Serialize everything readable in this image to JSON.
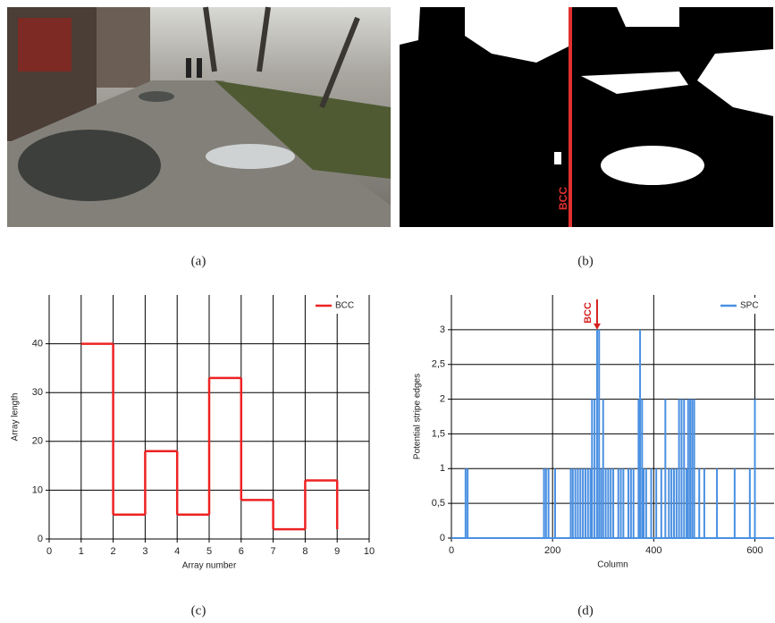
{
  "captions": [
    "(a)",
    "(b)",
    "(c)",
    "(d)"
  ],
  "mask_annotation": "BCC",
  "chart_data": [
    {
      "type": "line",
      "step": true,
      "xlabel": "Array number",
      "ylabel": "Array length",
      "x": [
        1,
        2,
        3,
        4,
        5,
        6,
        7,
        8,
        9
      ],
      "series": [
        {
          "name": "BCC",
          "color": "#ee2222",
          "values": [
            40,
            5,
            18,
            5,
            33,
            8,
            2,
            12,
            2
          ]
        }
      ],
      "xlim": [
        0,
        10
      ],
      "xticks": [
        0,
        1,
        2,
        3,
        4,
        5,
        6,
        7,
        8,
        9,
        10
      ],
      "ylim": [
        0,
        50
      ],
      "yticks": [
        0,
        10,
        20,
        30,
        40
      ],
      "grid": true,
      "legend": "upper right"
    },
    {
      "type": "spike",
      "xlabel": "Column",
      "ylabel": "Potential stripe edges",
      "x": [
        28,
        32,
        183,
        187,
        192,
        205,
        236,
        240,
        245,
        250,
        255,
        260,
        265,
        270,
        275,
        278,
        283,
        288,
        292,
        296,
        300,
        305,
        310,
        315,
        320,
        330,
        335,
        340,
        350,
        355,
        360,
        370,
        373,
        377,
        380,
        385,
        395,
        405,
        415,
        423,
        430,
        435,
        440,
        445,
        450,
        455,
        460,
        465,
        468,
        472,
        476,
        480,
        490,
        500,
        525,
        560,
        590,
        600
      ],
      "series": [
        {
          "name": "SPC",
          "color": "#4a90e2",
          "values": [
            1,
            1,
            1,
            1,
            1,
            1,
            1,
            1,
            1,
            1,
            1,
            1,
            1,
            1,
            1,
            2,
            2,
            3,
            3,
            1,
            2,
            1,
            1,
            1,
            1,
            1,
            1,
            1,
            1,
            1,
            1,
            2,
            3,
            2,
            1,
            1,
            1,
            1,
            1,
            2,
            1,
            1,
            1,
            1,
            2,
            2,
            2,
            1,
            2,
            2,
            2,
            2,
            1,
            1,
            1,
            1,
            1,
            2
          ]
        }
      ],
      "xlim": [
        0,
        638
      ],
      "xticks": [
        0,
        200,
        400,
        600
      ],
      "ylim": [
        0,
        3.5
      ],
      "yticks": [
        0,
        {
          "value": 0.5,
          "label": "0,5"
        },
        1,
        {
          "value": 1.5,
          "label": "1,5"
        },
        2,
        {
          "value": 2.5,
          "label": "2,5"
        },
        3
      ],
      "grid": true,
      "legend": "upper right",
      "annotations": [
        {
          "text": "BCC",
          "x": 288
        }
      ]
    }
  ]
}
